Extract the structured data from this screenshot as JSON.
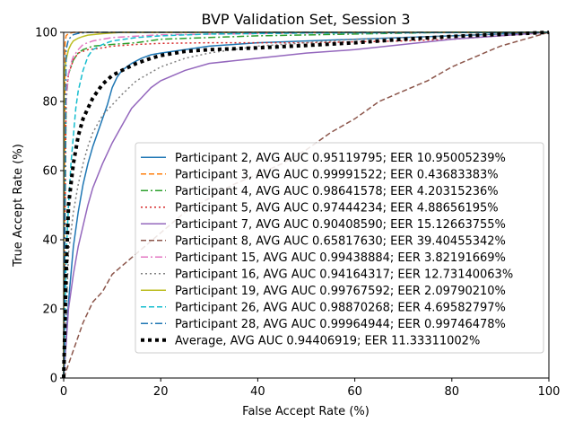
{
  "chart_data": {
    "type": "line",
    "title": "BVP Validation Set, Session 3",
    "xlabel": "False Accept Rate (%)",
    "ylabel": "True Accept Rate (%)",
    "xlim": [
      0,
      100
    ],
    "ylim": [
      0,
      100
    ],
    "xticks": [
      0,
      20,
      40,
      60,
      80,
      100
    ],
    "yticks": [
      0,
      20,
      40,
      60,
      80,
      100
    ],
    "xtick_labels": [
      "0",
      "20",
      "40",
      "60",
      "80",
      "100"
    ],
    "ytick_labels": [
      "0",
      "20",
      "40",
      "60",
      "80",
      "100"
    ],
    "grid": false,
    "legend_position": "lower right",
    "series": [
      {
        "name": "Participant 2, AVG AUC 0.95119795; EER 10.95005239%",
        "color": "#1f77b4",
        "dash": "solid",
        "width": 1.5,
        "x": [
          0,
          1,
          2,
          3,
          4,
          5,
          6,
          7,
          8,
          9,
          10,
          11,
          12,
          14,
          16,
          18,
          20,
          25,
          30,
          40,
          50,
          60,
          70,
          80,
          90,
          100
        ],
        "y": [
          0,
          22,
          38,
          48,
          56,
          62,
          67,
          71,
          75,
          79,
          84,
          87,
          89,
          91,
          92.5,
          93.5,
          94,
          95,
          96,
          97,
          97.5,
          98,
          98.5,
          99,
          99.5,
          100
        ]
      },
      {
        "name": "Participant 3, AVG AUC 0.99991522; EER 0.43683383%",
        "color": "#ff7f0e",
        "dash": "6,3",
        "width": 1.5,
        "x": [
          0,
          0.3,
          0.5,
          1,
          2,
          5,
          100
        ],
        "y": [
          0,
          97,
          99,
          99.7,
          100,
          100,
          100
        ]
      },
      {
        "name": "Participant 4, AVG AUC 0.98641578; EER 4.20315236%",
        "color": "#2ca02c",
        "dash": "8,3,2,3",
        "width": 1.5,
        "x": [
          0,
          0.5,
          1,
          2,
          3,
          4,
          6,
          10,
          15,
          20,
          30,
          40,
          60,
          80,
          100
        ],
        "y": [
          0,
          80,
          88,
          92,
          94,
          95,
          96,
          96.5,
          97,
          98,
          98.5,
          99,
          99.5,
          100,
          100
        ]
      },
      {
        "name": "Participant 5, AVG AUC 0.97444234; EER 4.88656195%",
        "color": "#d62728",
        "dash": "2,3",
        "width": 1.5,
        "x": [
          0,
          0.5,
          1,
          2,
          3,
          5,
          8,
          10,
          15,
          20,
          30,
          50,
          70,
          80,
          90,
          95,
          100
        ],
        "y": [
          0,
          82,
          88,
          92,
          94,
          95,
          95.5,
          96,
          96.5,
          96.8,
          97,
          97,
          97.5,
          98,
          99,
          99.5,
          100
        ]
      },
      {
        "name": "Participant 7, AVG AUC 0.90408590; EER 15.12663755%",
        "color": "#9467bd",
        "dash": "solid",
        "width": 1.5,
        "x": [
          0,
          1,
          2,
          3,
          4,
          5,
          6,
          8,
          10,
          12,
          14,
          16,
          18,
          20,
          25,
          30,
          40,
          50,
          60,
          70,
          80,
          90,
          100
        ],
        "y": [
          0,
          20,
          30,
          38,
          44,
          50,
          55,
          62,
          68,
          73,
          78,
          81,
          84,
          86,
          89,
          91,
          92.5,
          94,
          95,
          96.5,
          98,
          99,
          100
        ]
      },
      {
        "name": "Participant 8, AVG AUC 0.65817630; EER 39.40455342%",
        "color": "#8c564b",
        "dash": "6,3",
        "width": 1.5,
        "x": [
          0,
          2,
          4,
          6,
          8,
          10,
          15,
          20,
          25,
          30,
          35,
          40,
          45,
          50,
          55,
          60,
          65,
          70,
          75,
          80,
          85,
          90,
          95,
          100
        ],
        "y": [
          0,
          8,
          16,
          22,
          25,
          30,
          36,
          42,
          48,
          52,
          56,
          59,
          62,
          66,
          71,
          75,
          80,
          83,
          86,
          90,
          93,
          96,
          98,
          100
        ]
      },
      {
        "name": "Participant 15, AVG AUC 0.99438884; EER 3.82191669%",
        "color": "#e377c2",
        "dash": "8,3,2,3",
        "width": 1.5,
        "x": [
          0,
          0.3,
          0.6,
          1,
          1.5,
          2,
          3,
          4,
          6,
          10,
          20,
          50,
          100
        ],
        "y": [
          0,
          75,
          82,
          88,
          91,
          93,
          95,
          96.5,
          97.5,
          98.5,
          99.3,
          99.8,
          100
        ]
      },
      {
        "name": "Participant 16, AVG AUC 0.94164317; EER 12.73140063%",
        "color": "#7f7f7f",
        "dash": "2,3",
        "width": 1.5,
        "x": [
          0,
          1,
          2,
          3,
          4,
          5,
          6,
          8,
          10,
          12,
          15,
          20,
          25,
          30,
          40,
          50,
          60,
          80,
          100
        ],
        "y": [
          0,
          36,
          48,
          56,
          62,
          67,
          71,
          76,
          79,
          82,
          86,
          90,
          92.5,
          94,
          96,
          97,
          98,
          99,
          100
        ]
      },
      {
        "name": "Participant 19, AVG AUC 0.99767592; EER 2.09790210%",
        "color": "#bcbd22",
        "dash": "solid",
        "width": 1.5,
        "x": [
          0,
          0.1,
          0.5,
          1,
          1.5,
          2,
          3,
          4,
          5,
          8,
          12,
          100
        ],
        "y": [
          0,
          88,
          92,
          95,
          96.5,
          97.5,
          98.3,
          98.8,
          99.2,
          99.6,
          100,
          100
        ]
      },
      {
        "name": "Participant 26, AVG AUC 0.98870268; EER 4.69582797%",
        "color": "#17becf",
        "dash": "6,3",
        "width": 1.5,
        "x": [
          0,
          0.5,
          1,
          1.5,
          2,
          2.5,
          3,
          4,
          5,
          6,
          8,
          10,
          15,
          20,
          30,
          50,
          100
        ],
        "y": [
          0,
          35,
          50,
          62,
          70,
          78,
          83,
          89,
          93,
          95,
          96.5,
          97.5,
          98.5,
          99,
          99.5,
          99.8,
          100
        ]
      },
      {
        "name": "Participant 28, AVG AUC 0.99964944; EER 0.99746478%",
        "color": "#1f77b4",
        "dash": "8,3,2,3",
        "width": 1.5,
        "x": [
          0,
          0.5,
          1,
          2,
          3,
          5,
          100
        ],
        "y": [
          0,
          95,
          98,
          99.3,
          99.7,
          100,
          100
        ]
      },
      {
        "name": "Average, AVG AUC 0.94406919; EER 11.33311002%",
        "color": "#000000",
        "dash": "4,4",
        "width": 4,
        "x": [
          0,
          0.5,
          1,
          2,
          3,
          4,
          5,
          6,
          8,
          10,
          12,
          15,
          18,
          20,
          25,
          30,
          40,
          50,
          60,
          70,
          80,
          90,
          95,
          100
        ],
        "y": [
          0,
          30,
          50,
          62,
          70,
          75,
          78,
          81,
          85,
          87.5,
          89,
          91,
          92.5,
          93.3,
          94.5,
          95,
          95.5,
          96.2,
          97,
          98,
          98.8,
          99.4,
          99.7,
          100
        ]
      }
    ]
  }
}
